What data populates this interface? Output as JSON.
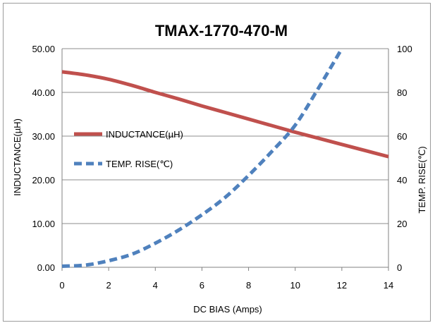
{
  "chart_data": {
    "type": "line",
    "title": "TMAX-1770-470-M",
    "xlabel": "DC BIAS  (Amps)",
    "ylabel": "INDUCTANCE(µH)",
    "y2label": "TEMP. RISE(℃)",
    "xlim": [
      0,
      14
    ],
    "ylim": [
      0,
      50
    ],
    "y2lim": [
      0,
      100
    ],
    "x_ticks": [
      "0",
      "2",
      "4",
      "6",
      "8",
      "10",
      "12",
      "14"
    ],
    "y_ticks": [
      "0.00",
      "10.00",
      "20.00",
      "30.00",
      "40.00",
      "50.00"
    ],
    "y2_ticks": [
      "0",
      "20",
      "40",
      "60",
      "80",
      "100"
    ],
    "grid": "horizontal",
    "legend_position": "left-center",
    "series": [
      {
        "name": "INDUCTANCE(µH)",
        "axis": "left",
        "color": "#c0504d",
        "style": "solid",
        "x": [
          0,
          1,
          2,
          3,
          4,
          5,
          6,
          7,
          8,
          9,
          10,
          11,
          12,
          13,
          14
        ],
        "values": [
          44.7,
          44.0,
          43.0,
          41.6,
          40.0,
          38.5,
          36.9,
          35.4,
          33.9,
          32.4,
          30.9,
          29.5,
          28.1,
          26.7,
          25.3
        ]
      },
      {
        "name": "TEMP. RISE(℃)",
        "axis": "right",
        "color": "#4f81bd",
        "style": "dashed",
        "x": [
          0,
          1,
          2,
          3,
          4,
          5,
          6,
          7,
          8,
          9,
          10,
          11,
          12
        ],
        "values": [
          0.5,
          1.0,
          3.0,
          6.0,
          11.0,
          17.0,
          24.0,
          32.0,
          42.0,
          53.0,
          65.0,
          82.0,
          100.0
        ]
      }
    ]
  }
}
